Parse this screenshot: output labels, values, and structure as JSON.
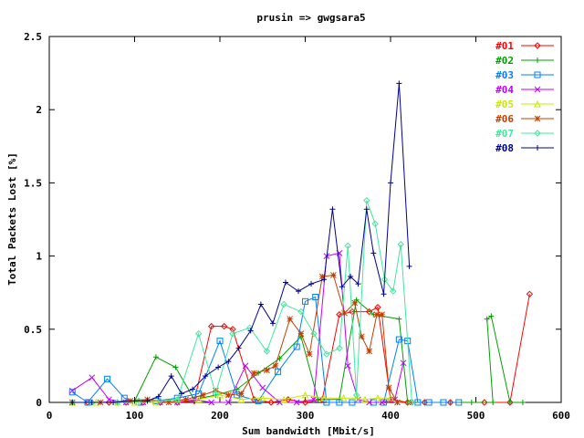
{
  "chart_data": {
    "type": "line",
    "title": "prusin => gwgsara5",
    "xlabel": "Sum bandwidth [Mbit/s]",
    "ylabel": "Total Packets Lost [%]",
    "xlim": [
      0,
      600
    ],
    "ylim": [
      0,
      2.5
    ],
    "xticks": [
      0,
      100,
      200,
      300,
      400,
      500,
      600
    ],
    "xtick_labels": [
      "0",
      "100",
      "200",
      "300",
      "400",
      "500",
      "600"
    ],
    "yticks": [
      0,
      0.5,
      1,
      1.5,
      2,
      2.5
    ],
    "ytick_labels": [
      "0",
      "0.5",
      "1",
      "1.5",
      "2",
      "2.5"
    ],
    "grid": false,
    "legend_position": "top-right",
    "series": [
      {
        "name": "#01",
        "color": "#ff0000",
        "marker": "diamond",
        "x": [
          27,
          45,
          70,
          90,
          110,
          130,
          150,
          170,
          190,
          205,
          215,
          240,
          260,
          280,
          300,
          320,
          340,
          355,
          375,
          385,
          400,
          420,
          440,
          470,
          510,
          540,
          563
        ],
        "y": [
          0,
          0,
          0,
          0,
          0,
          0,
          0,
          0.01,
          0.52,
          0.52,
          0.5,
          0.02,
          0,
          0.02,
          0,
          0.02,
          0.6,
          0.62,
          0.62,
          0.65,
          0.02,
          0,
          0,
          0,
          0,
          0,
          0.74
        ]
      },
      {
        "name": "#02",
        "color": "#00a000",
        "marker": "plus",
        "x": [
          27,
          50,
          80,
          100,
          125,
          148,
          170,
          195,
          220,
          245,
          270,
          295,
          315,
          340,
          360,
          380,
          410,
          420,
          440,
          470,
          495,
          520,
          513,
          518,
          540,
          555
        ],
        "y": [
          0,
          0,
          0,
          0.01,
          0.31,
          0.24,
          0.02,
          0.05,
          0.09,
          0.2,
          0.3,
          0.45,
          0.02,
          0.02,
          0.7,
          0.6,
          0.57,
          0,
          0,
          0,
          0,
          0,
          0.57,
          0.59,
          0,
          0
        ]
      },
      {
        "name": "#03",
        "color": "#0080ff",
        "marker": "square",
        "x": [
          27,
          45,
          68,
          88,
          105,
          125,
          150,
          175,
          200,
          220,
          245,
          268,
          290,
          300,
          312,
          325,
          340,
          355,
          380,
          392,
          410,
          420,
          432,
          445,
          462,
          480
        ],
        "y": [
          0.07,
          0,
          0.16,
          0.03,
          0,
          0.01,
          0.03,
          0.06,
          0.42,
          0.05,
          0.01,
          0.21,
          0.38,
          0.69,
          0.72,
          0,
          0,
          0,
          0,
          0,
          0.43,
          0.42,
          0,
          0,
          0,
          0
        ]
      },
      {
        "name": "#04",
        "color": "#c000ff",
        "marker": "x",
        "x": [
          27,
          50,
          70,
          90,
          110,
          130,
          150,
          170,
          190,
          210,
          230,
          250,
          270,
          290,
          310,
          325,
          340,
          350,
          362,
          375,
          390,
          405,
          415
        ],
        "y": [
          0.08,
          0.17,
          0.02,
          0,
          0,
          0,
          0,
          0.02,
          0,
          0,
          0.25,
          0.1,
          0,
          0,
          0.02,
          1.0,
          1.02,
          0.25,
          0.02,
          0,
          0,
          0.02,
          0.27
        ]
      },
      {
        "name": "#05",
        "color": "#c8e800",
        "marker": "triangle",
        "x": [
          27,
          55,
          80,
          100,
          125,
          150,
          175,
          200,
          225,
          250,
          275,
          300,
          322,
          345,
          360,
          370,
          385,
          400
        ],
        "y": [
          0,
          0,
          0,
          0,
          0,
          0.02,
          0.02,
          0.05,
          0.02,
          0.03,
          0.02,
          0.05,
          0.03,
          0.03,
          0.03,
          0.02,
          0.03,
          0.03
        ]
      },
      {
        "name": "#06",
        "color": "#c04000",
        "marker": "star",
        "x": [
          27,
          60,
          95,
          115,
          140,
          160,
          180,
          195,
          210,
          225,
          240,
          255,
          265,
          282,
          295,
          305,
          320,
          333,
          346,
          358,
          366,
          375,
          384,
          390,
          398,
          408,
          423
        ],
        "y": [
          0,
          0,
          0.01,
          0.02,
          0,
          0.02,
          0.05,
          0.08,
          0.05,
          0.06,
          0.2,
          0.22,
          0.25,
          0.57,
          0.47,
          0.33,
          0.86,
          0.87,
          0.61,
          0.68,
          0.45,
          0.35,
          0.6,
          0.6,
          0.1,
          0,
          0
        ]
      },
      {
        "name": "#07",
        "color": "#40e8a0",
        "marker": "diamond",
        "x": [
          27,
          50,
          80,
          105,
          130,
          150,
          175,
          195,
          215,
          235,
          255,
          275,
          295,
          310,
          325,
          340,
          350,
          360,
          372,
          382,
          393,
          403,
          412,
          425
        ],
        "y": [
          0,
          0,
          0,
          0.01,
          0.01,
          0.02,
          0.47,
          0.06,
          0.47,
          0.51,
          0.35,
          0.67,
          0.62,
          0.47,
          0.33,
          0.37,
          1.07,
          0.05,
          1.38,
          1.22,
          0.84,
          0.76,
          1.08,
          0
        ]
      },
      {
        "name": "#08",
        "color": "#000090",
        "marker": "plus",
        "x": [
          27,
          50,
          75,
          100,
          115,
          128,
          143,
          155,
          168,
          183,
          198,
          210,
          222,
          236,
          248,
          262,
          277,
          292,
          307,
          322,
          332,
          343,
          353,
          362,
          372,
          380,
          392,
          400,
          410,
          422
        ],
        "y": [
          0,
          0,
          0,
          0.01,
          0.01,
          0.04,
          0.18,
          0.06,
          0.09,
          0.18,
          0.24,
          0.28,
          0.37,
          0.49,
          0.67,
          0.54,
          0.82,
          0.76,
          0.81,
          0.84,
          1.32,
          0.79,
          0.86,
          0.81,
          1.32,
          1.02,
          0.74,
          1.5,
          2.18,
          0.93
        ]
      }
    ]
  }
}
